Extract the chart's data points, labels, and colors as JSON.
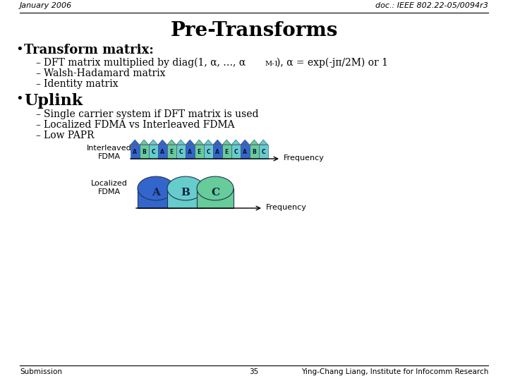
{
  "bg_color": "#ffffff",
  "header_left": "January 2006",
  "header_right": "doc.: IEEE 802.22-05/0094r3",
  "title": "Pre-Transforms",
  "bullet1": "Transform matrix:",
  "sub1a_part1": "DFT matrix multiplied by diag(1, α, …, α",
  "sub1a_super": "M-1",
  "sub1a_part2": "), α = exp(-jπ/2M) or 1",
  "sub1b": "Walsh-Hadamard matrix",
  "sub1c": "Identity matrix",
  "bullet2": "Uplink",
  "sub2a": "Single carrier system if DFT matrix is used",
  "sub2b": "Localized FDMA vs Interleaved FDMA",
  "sub2c": "Low PAPR",
  "interleaved_label": "Interleaved\nFDMA",
  "localized_label": "Localized\nFDMA",
  "freq_label": "Frequency",
  "footer_left": "Submission",
  "footer_center": "35",
  "footer_right": "Ying-Chang Liang, Institute for Infocomm Research",
  "color_A": "#3366cc",
  "color_B": "#66cc99",
  "color_C": "#66cccc",
  "color_E": "#66cc99",
  "interleaved_seq": [
    "A",
    "B",
    "C",
    "A",
    "E",
    "C",
    "A",
    "E",
    "C",
    "A",
    "E",
    "C",
    "A",
    "B",
    "C"
  ],
  "loc_colors": [
    "#3366cc",
    "#66cccc",
    "#66cc99"
  ],
  "loc_labels": [
    "A",
    "B",
    "C"
  ]
}
